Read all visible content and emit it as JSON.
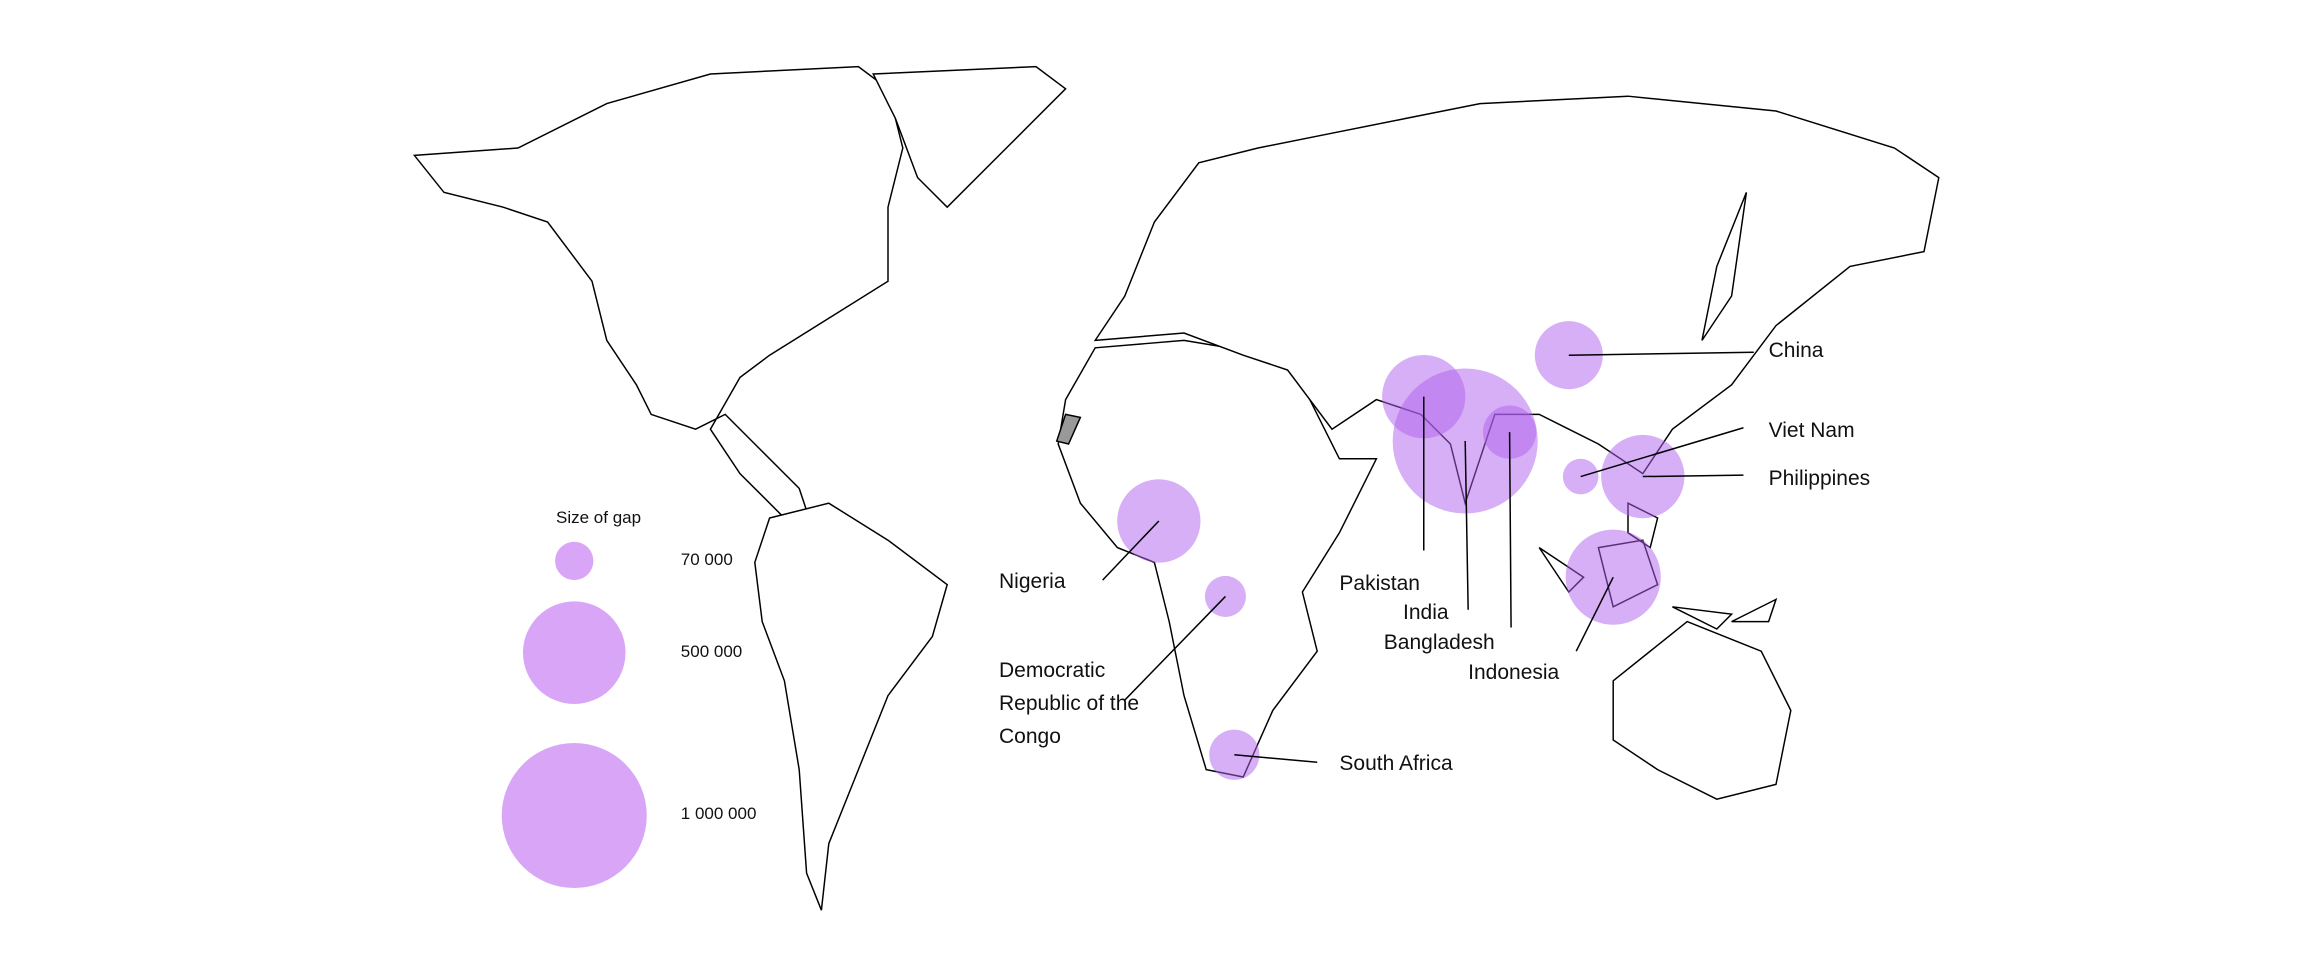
{
  "map": {
    "legend": {
      "title": "Size of gap",
      "items": [
        {
          "value": 70000,
          "label": "70 000"
        },
        {
          "value": 500000,
          "label": "500 000"
        },
        {
          "value": 1000000,
          "label": "1 000 000"
        }
      ]
    },
    "countries": [
      {
        "name": "China",
        "value": 220000
      },
      {
        "name": "Viet Nam",
        "value": 60000
      },
      {
        "name": "Philippines",
        "value": 330000
      },
      {
        "name": "Pakistan",
        "value": 330000
      },
      {
        "name": "India",
        "value": 1000000
      },
      {
        "name": "Bangladesh",
        "value": 135000
      },
      {
        "name": "Indonesia",
        "value": 430000
      },
      {
        "name": "Nigeria",
        "value": 330000
      },
      {
        "name": "Democratic Republic of the Congo",
        "value": 80000
      },
      {
        "name": "South Africa",
        "value": 120000
      }
    ]
  }
}
